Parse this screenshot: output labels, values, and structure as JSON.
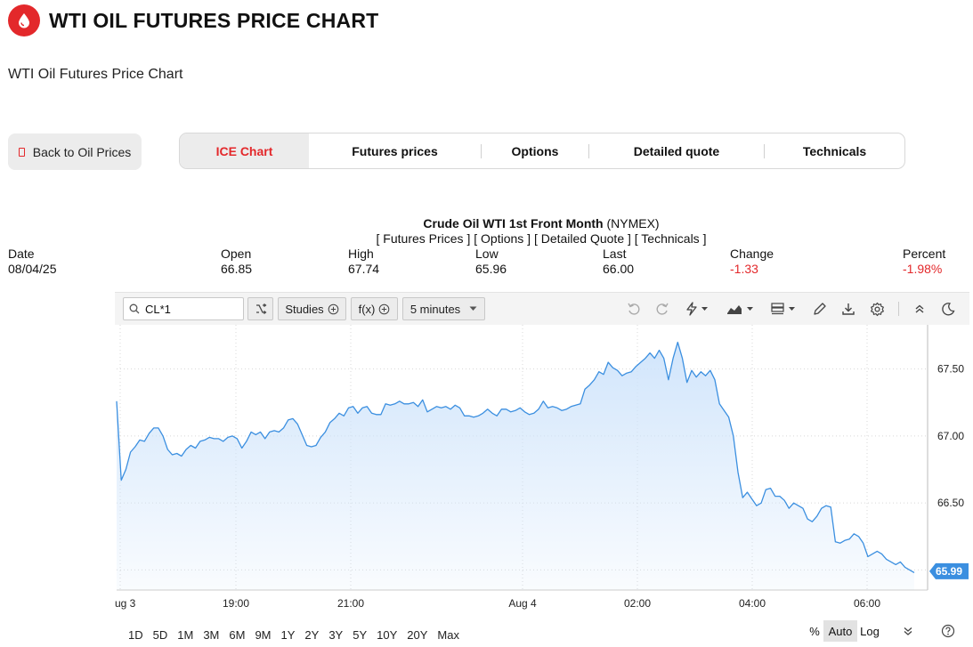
{
  "header": {
    "title": "WTI OIL FUTURES PRICE CHART",
    "subtitle": "WTI Oil Futures Price Chart"
  },
  "back_button": {
    "label": "Back to Oil Prices"
  },
  "tabs": [
    {
      "label": "ICE Chart",
      "active": true
    },
    {
      "label": "Futures prices",
      "active": false
    },
    {
      "label": "Options",
      "active": false
    },
    {
      "label": "Detailed quote",
      "active": false
    },
    {
      "label": "Technicals",
      "active": false
    }
  ],
  "quote": {
    "name": "Crude Oil WTI 1st Front Month",
    "exchange": "(NYMEX)",
    "links": [
      "[ Futures Prices ]",
      "[ Options ]",
      "[ Detailed Quote ]",
      "[ Technicals ]"
    ]
  },
  "stats": [
    {
      "label": "Date",
      "value": "08/04/25",
      "negative": false
    },
    {
      "label": "Open",
      "value": "66.85",
      "negative": false
    },
    {
      "label": "High",
      "value": "67.74",
      "negative": false
    },
    {
      "label": "Low",
      "value": "65.96",
      "negative": false
    },
    {
      "label": "Last",
      "value": "66.00",
      "negative": false
    },
    {
      "label": "Change",
      "value": "-1.33",
      "negative": true
    },
    {
      "label": "Percent",
      "value": "-1.98%",
      "negative": true
    }
  ],
  "toolbar": {
    "symbol": "CL*1",
    "studies_label": "Studies",
    "fx_label": "f(x)",
    "interval": "5 minutes",
    "icons": [
      "compare-icon",
      "undo-icon",
      "redo-icon",
      "lightning-icon",
      "chart-style-icon",
      "layout-icon",
      "draw-icon",
      "download-icon",
      "settings-icon",
      "collapse-icon",
      "dark-mode-icon"
    ]
  },
  "chart_data": {
    "type": "area",
    "x_labels": [
      "ug 3",
      "19:00",
      "21:00",
      "Aug 4",
      "02:00",
      "04:00",
      "06:00"
    ],
    "y_ticks": [
      67.5,
      67.0,
      66.5
    ],
    "y_tick_labels": [
      "67.50",
      "67.00",
      "66.50"
    ],
    "ylim": [
      65.85,
      67.83
    ],
    "last_price_label": "65.99",
    "last_price": 65.99,
    "line_color": "#3b8fe0",
    "fill_color": "#cfe4fb",
    "grid": true,
    "values": [
      67.26,
      66.67,
      66.75,
      66.88,
      66.92,
      66.97,
      66.96,
      67.02,
      67.06,
      67.06,
      67.0,
      66.9,
      66.86,
      66.87,
      66.85,
      66.9,
      66.93,
      66.91,
      66.96,
      66.97,
      66.99,
      66.98,
      66.98,
      66.96,
      66.99,
      67.0,
      66.98,
      66.91,
      66.96,
      67.03,
      67.01,
      67.03,
      66.98,
      67.03,
      67.04,
      67.03,
      67.06,
      67.12,
      67.13,
      67.09,
      67.01,
      66.93,
      66.92,
      66.93,
      66.99,
      67.03,
      67.1,
      67.13,
      67.17,
      67.15,
      67.21,
      67.22,
      67.17,
      67.21,
      67.22,
      67.17,
      67.16,
      67.16,
      67.24,
      67.23,
      67.24,
      67.26,
      67.24,
      67.24,
      67.25,
      67.22,
      67.27,
      67.18,
      67.2,
      67.22,
      67.21,
      67.22,
      67.2,
      67.23,
      67.21,
      67.15,
      67.15,
      67.14,
      67.15,
      67.17,
      67.2,
      67.17,
      67.15,
      67.2,
      67.2,
      67.18,
      67.19,
      67.21,
      67.18,
      67.16,
      67.17,
      67.2,
      67.26,
      67.21,
      67.22,
      67.21,
      67.19,
      67.2,
      67.22,
      67.23,
      67.24,
      67.35,
      67.38,
      67.42,
      67.48,
      67.46,
      67.55,
      67.51,
      67.49,
      67.45,
      67.47,
      67.48,
      67.52,
      67.55,
      67.58,
      67.62,
      67.58,
      67.64,
      67.58,
      67.42,
      67.58,
      67.7,
      67.58,
      67.4,
      67.49,
      67.44,
      67.48,
      67.45,
      67.49,
      67.42,
      67.24,
      67.19,
      67.14,
      67.0,
      66.73,
      66.54,
      66.58,
      66.53,
      66.48,
      66.5,
      66.6,
      66.61,
      66.55,
      66.55,
      66.52,
      66.46,
      66.5,
      66.48,
      66.46,
      66.38,
      66.36,
      66.4,
      66.46,
      66.48,
      66.47,
      66.21,
      66.2,
      66.22,
      66.23,
      66.27,
      66.25,
      66.2,
      66.1,
      66.12,
      66.14,
      66.12,
      66.08,
      66.06,
      66.04,
      66.06,
      66.02,
      66.0,
      65.98
    ]
  },
  "bottom_bar": {
    "ranges": [
      "1D",
      "5D",
      "1M",
      "3M",
      "6M",
      "9M",
      "1Y",
      "2Y",
      "3Y",
      "5Y",
      "10Y",
      "20Y",
      "Max"
    ],
    "percent_label": "%",
    "auto_label": "Auto",
    "log_label": "Log"
  }
}
